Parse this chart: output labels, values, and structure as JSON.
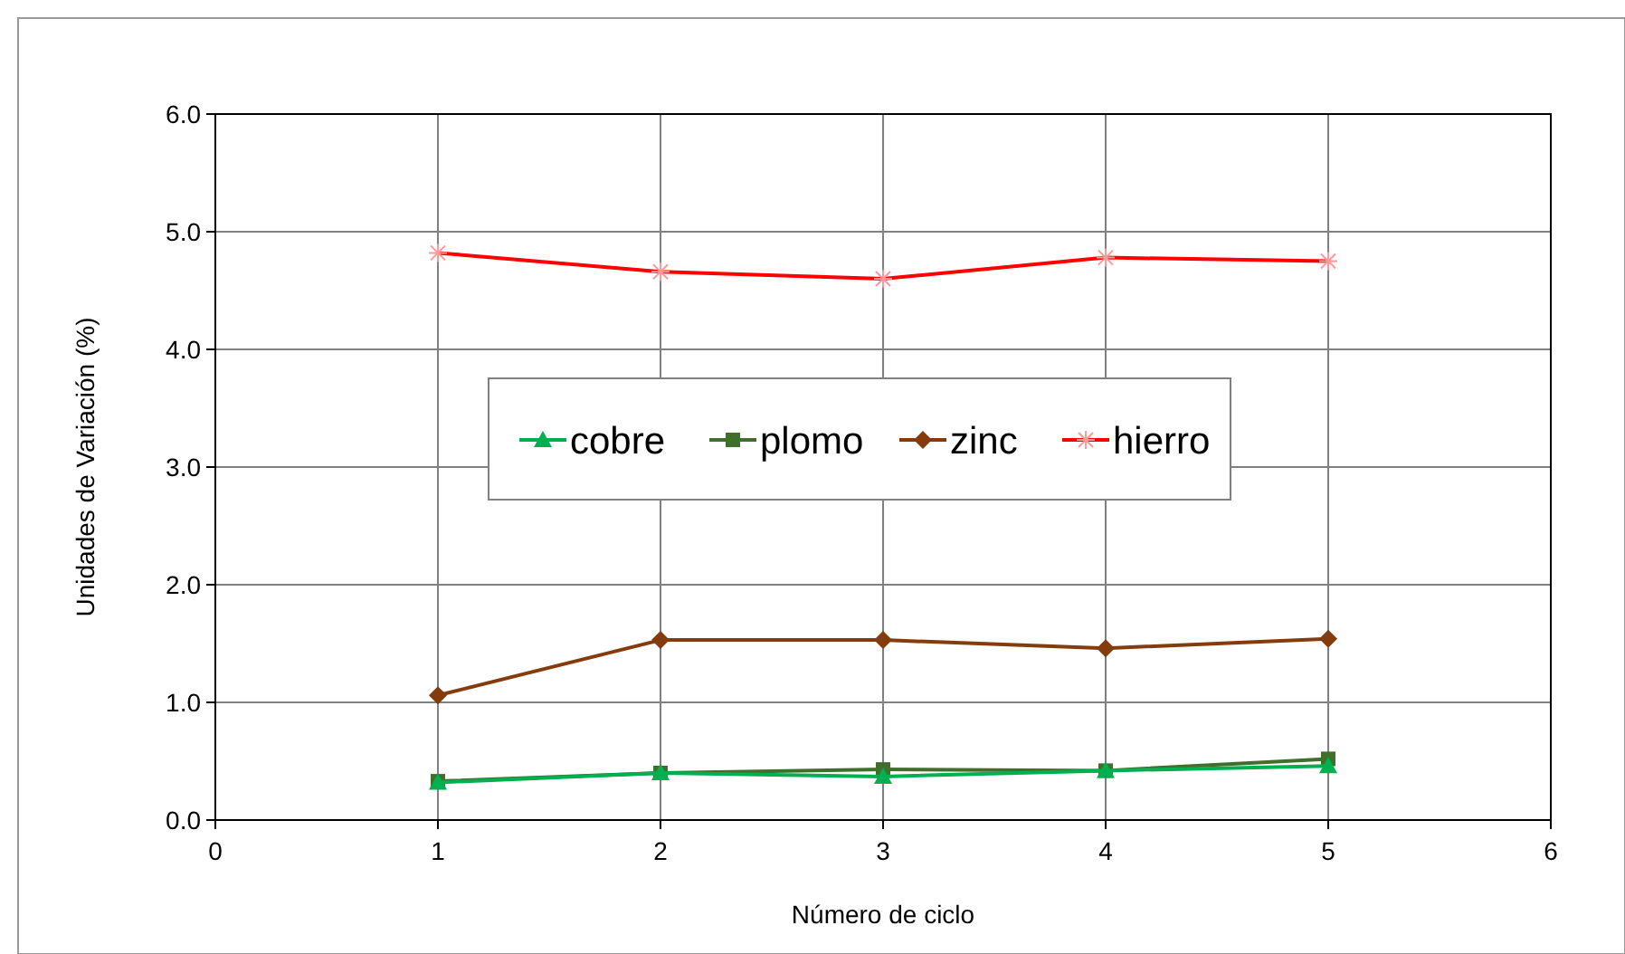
{
  "chart_data": {
    "type": "line",
    "xlabel": "Número de ciclo",
    "ylabel": "Unidades de Variación (%)",
    "x": [
      1,
      2,
      3,
      4,
      5
    ],
    "xlim": [
      0,
      6
    ],
    "xticks": [
      0,
      1,
      2,
      3,
      4,
      5,
      6
    ],
    "ylim": [
      0,
      6
    ],
    "yticks": [
      {
        "value": 0,
        "label": "0.0"
      },
      {
        "value": 1,
        "label": "1.0"
      },
      {
        "value": 2,
        "label": "2.0"
      },
      {
        "value": 3,
        "label": "3.0"
      },
      {
        "value": 4,
        "label": "4.0"
      },
      {
        "value": 5,
        "label": "5.0"
      },
      {
        "value": 6,
        "label": "6.0"
      }
    ],
    "grid": true,
    "legend": "center",
    "series": [
      {
        "name": "cobre",
        "color": "#00b050",
        "marker": "triangle",
        "values": [
          0.32,
          0.4,
          0.37,
          0.42,
          0.46
        ]
      },
      {
        "name": "plomo",
        "color": "#3f6f2a",
        "marker": "square",
        "values": [
          0.33,
          0.4,
          0.43,
          0.42,
          0.52
        ]
      },
      {
        "name": "zinc",
        "color": "#843c0c",
        "marker": "diamond",
        "values": [
          1.06,
          1.53,
          1.53,
          1.46,
          1.54
        ]
      },
      {
        "name": "hierro",
        "color": "#ff0000",
        "marker": "cross",
        "values": [
          4.82,
          4.66,
          4.6,
          4.78,
          4.75
        ]
      }
    ]
  }
}
